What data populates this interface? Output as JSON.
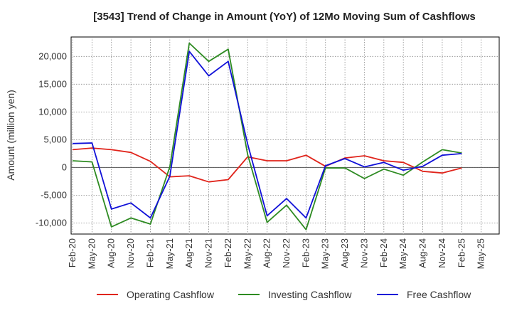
{
  "chart_data": {
    "type": "line",
    "title": "[3543]  Trend of Change in Amount (YoY) of 12Mo Moving Sum of Cashflows",
    "xlabel": "",
    "ylabel": "Amount (million yen)",
    "ylim": [
      -12000,
      23500
    ],
    "yticks": [
      -10000,
      -5000,
      0,
      5000,
      10000,
      15000,
      20000
    ],
    "ytick_labels": [
      "-10,000",
      "-5,000",
      "0",
      "5,000",
      "10,000",
      "15,000",
      "20,000"
    ],
    "xticks": [
      "Feb-20",
      "May-20",
      "Aug-20",
      "Nov-20",
      "Feb-21",
      "May-21",
      "Aug-21",
      "Nov-21",
      "Feb-22",
      "May-22",
      "Aug-22",
      "Nov-22",
      "Feb-23",
      "May-23",
      "Aug-23",
      "Nov-23",
      "Feb-24",
      "May-24",
      "Aug-24",
      "Nov-24",
      "Feb-25",
      "May-25"
    ],
    "series": [
      {
        "name": "Operating Cashflow",
        "color": "#e0241b",
        "values": [
          3200,
          3500,
          3200,
          2700,
          1100,
          -1700,
          -1500,
          -2600,
          -2200,
          1900,
          1200,
          1200,
          2200,
          200,
          1700,
          2100,
          1200,
          900,
          -700,
          -1000,
          -100
        ]
      },
      {
        "name": "Investing Cashflow",
        "color": "#2e8b22",
        "values": [
          1200,
          1000,
          -10700,
          -9100,
          -10200,
          100,
          22400,
          19100,
          21300,
          2300,
          -9900,
          -6800,
          -11200,
          -100,
          -100,
          -2000,
          -300,
          -1400,
          1000,
          3200,
          2600
        ]
      },
      {
        "name": "Free Cashflow",
        "color": "#1010d8",
        "values": [
          4300,
          4400,
          -7500,
          -6400,
          -9100,
          -1600,
          20900,
          16500,
          19100,
          4200,
          -8700,
          -5600,
          -9100,
          300,
          1600,
          100,
          900,
          -500,
          200,
          2200,
          2500
        ]
      }
    ]
  }
}
